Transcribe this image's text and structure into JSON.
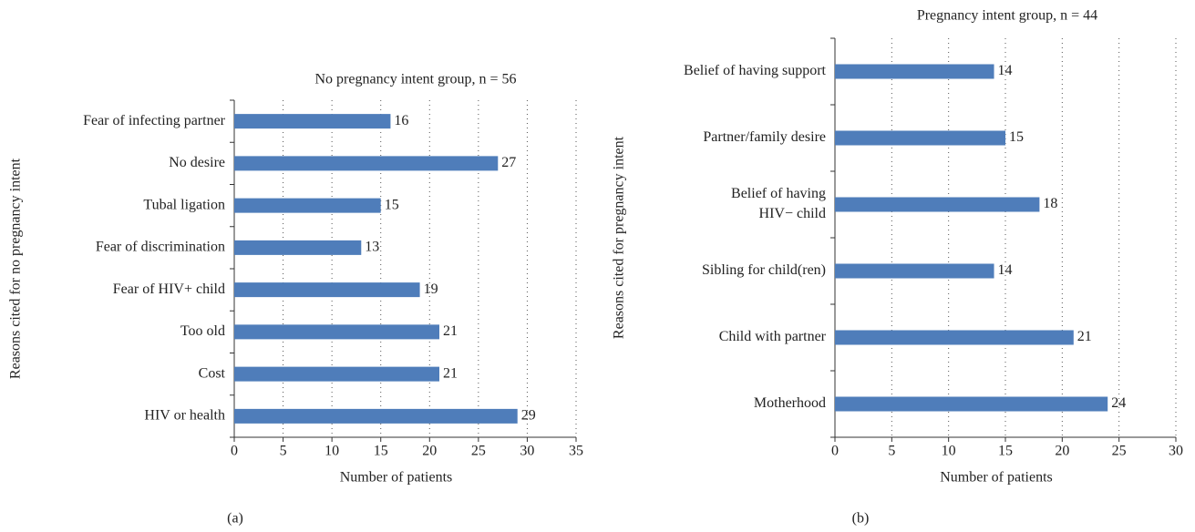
{
  "chart_data": [
    {
      "type": "bar",
      "orientation": "horizontal",
      "title": "No pregnancy intent group, n = 56",
      "panel_label": "(a)",
      "x_label": "Number of patients",
      "y_label": "Reasons cited for no pregnancy intent",
      "categories": [
        "Fear of infecting partner",
        "No desire",
        "Tubal ligation",
        "Fear of discrimination",
        "Fear of HIV+ child",
        "Too old",
        "Cost",
        "HIV or health"
      ],
      "values": [
        16,
        27,
        15,
        13,
        19,
        21,
        21,
        29
      ],
      "color": "#4f7dba",
      "xlim": [
        0,
        35
      ],
      "xticks": [
        0,
        5,
        10,
        15,
        20,
        25,
        30,
        35
      ],
      "grid": true
    },
    {
      "type": "bar",
      "orientation": "horizontal",
      "title": "Pregnancy intent group, n = 44",
      "panel_label": "(b)",
      "x_label": "Number of patients",
      "y_label": "Reasons cited for pregnancy intent",
      "categories": [
        "Belief of having support",
        "Partner/family desire",
        [
          "Belief of having",
          "HIV− child"
        ],
        "Sibling for child(ren)",
        "Child with partner",
        "Motherhood"
      ],
      "values": [
        14,
        15,
        18,
        14,
        21,
        24
      ],
      "color": "#4f7dba",
      "xlim": [
        0,
        30
      ],
      "xticks": [
        0,
        5,
        10,
        15,
        20,
        25,
        30
      ],
      "grid": true
    }
  ]
}
